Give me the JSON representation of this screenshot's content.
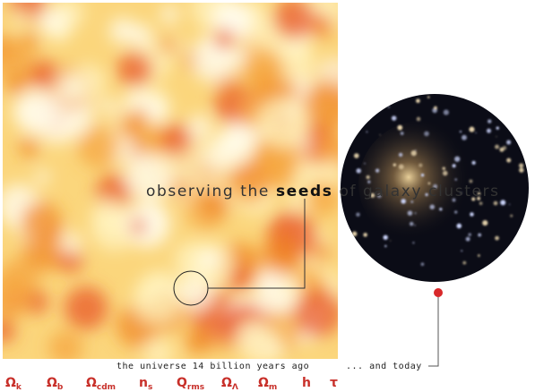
{
  "headline": {
    "before": "observing the",
    "emphasis": "seeds",
    "after": "of galaxy clusters"
  },
  "captions": {
    "past": "the universe 14 billion years ago",
    "present": "... and today"
  },
  "parameters": [
    {
      "symbol": "Ω",
      "subscript": "k"
    },
    {
      "symbol": "Ω",
      "subscript": "b"
    },
    {
      "symbol": "Ω",
      "subscript": "cdm"
    },
    {
      "symbol": "n",
      "subscript": "s"
    },
    {
      "symbol": "Q",
      "subscript": "rms"
    },
    {
      "symbol": "Ω",
      "subscript": "Λ"
    },
    {
      "symbol": "Ω",
      "subscript": "m"
    },
    {
      "symbol": "h"
    },
    {
      "symbol": "τ"
    }
  ]
}
